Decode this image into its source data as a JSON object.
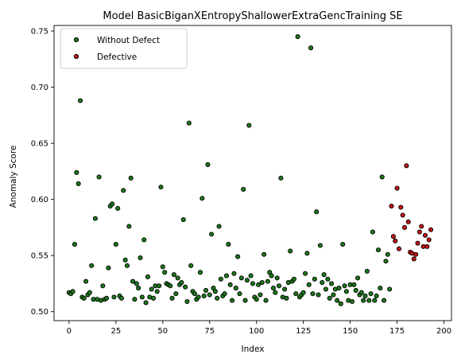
{
  "chart_data": {
    "type": "scatter",
    "title": "Model BasicBiganXEntropyShallowerExtraGencTraining SE",
    "xlabel": "Index",
    "ylabel": "Anomaly Score",
    "xlim": [
      -8,
      204
    ],
    "ylim": [
      0.492,
      0.755
    ],
    "xticks": [
      0,
      25,
      50,
      75,
      100,
      125,
      150,
      175,
      200
    ],
    "yticks": [
      0.5,
      0.55,
      0.6,
      0.65,
      0.7,
      0.75
    ],
    "xtick_labels": [
      "0",
      "25",
      "50",
      "75",
      "100",
      "125",
      "150",
      "175",
      "200"
    ],
    "ytick_labels": [
      "0.50",
      "0.55",
      "0.60",
      "0.65",
      "0.70",
      "0.75"
    ],
    "grid": false,
    "legend_position": "top-left",
    "series": [
      {
        "name": "Without Defect",
        "color": "#1a7a1a",
        "edge_color": "#000000",
        "points": [
          [
            0,
            0.517
          ],
          [
            1,
            0.516
          ],
          [
            2,
            0.518
          ],
          [
            3,
            0.56
          ],
          [
            4,
            0.624
          ],
          [
            5,
            0.614
          ],
          [
            6,
            0.688
          ],
          [
            7,
            0.513
          ],
          [
            8,
            0.512
          ],
          [
            9,
            0.527
          ],
          [
            10,
            0.515
          ],
          [
            11,
            0.517
          ],
          [
            12,
            0.541
          ],
          [
            13,
            0.511
          ],
          [
            14,
            0.583
          ],
          [
            15,
            0.511
          ],
          [
            16,
            0.62
          ],
          [
            17,
            0.51
          ],
          [
            18,
            0.523
          ],
          [
            19,
            0.511
          ],
          [
            20,
            0.512
          ],
          [
            21,
            0.539
          ],
          [
            22,
            0.594
          ],
          [
            23,
            0.596
          ],
          [
            24,
            0.513
          ],
          [
            25,
            0.56
          ],
          [
            26,
            0.592
          ],
          [
            27,
            0.514
          ],
          [
            28,
            0.512
          ],
          [
            29,
            0.608
          ],
          [
            30,
            0.546
          ],
          [
            31,
            0.541
          ],
          [
            32,
            0.576
          ],
          [
            33,
            0.619
          ],
          [
            34,
            0.527
          ],
          [
            35,
            0.511
          ],
          [
            36,
            0.525
          ],
          [
            37,
            0.521
          ],
          [
            38,
            0.548
          ],
          [
            39,
            0.513
          ],
          [
            40,
            0.564
          ],
          [
            41,
            0.508
          ],
          [
            42,
            0.531
          ],
          [
            43,
            0.513
          ],
          [
            44,
            0.52
          ],
          [
            45,
            0.512
          ],
          [
            46,
            0.523
          ],
          [
            47,
            0.518
          ],
          [
            48,
            0.523
          ],
          [
            49,
            0.611
          ],
          [
            50,
            0.54
          ],
          [
            51,
            0.535
          ],
          [
            52,
            0.525
          ],
          [
            53,
            0.524
          ],
          [
            54,
            0.523
          ],
          [
            55,
            0.512
          ],
          [
            56,
            0.533
          ],
          [
            57,
            0.516
          ],
          [
            58,
            0.53
          ],
          [
            59,
            0.524
          ],
          [
            60,
            0.526
          ],
          [
            61,
            0.582
          ],
          [
            62,
            0.522
          ],
          [
            63,
            0.509
          ],
          [
            64,
            0.668
          ],
          [
            65,
            0.541
          ],
          [
            66,
            0.518
          ],
          [
            67,
            0.516
          ],
          [
            68,
            0.511
          ],
          [
            69,
            0.513
          ],
          [
            70,
            0.535
          ],
          [
            71,
            0.601
          ],
          [
            72,
            0.514
          ],
          [
            73,
            0.519
          ],
          [
            74,
            0.631
          ],
          [
            75,
            0.515
          ],
          [
            76,
            0.569
          ],
          [
            77,
            0.521
          ],
          [
            78,
            0.518
          ],
          [
            79,
            0.512
          ],
          [
            80,
            0.576
          ],
          [
            81,
            0.529
          ],
          [
            82,
            0.514
          ],
          [
            83,
            0.516
          ],
          [
            84,
            0.532
          ],
          [
            85,
            0.56
          ],
          [
            86,
            0.524
          ],
          [
            87,
            0.51
          ],
          [
            88,
            0.534
          ],
          [
            89,
            0.521
          ],
          [
            90,
            0.549
          ],
          [
            91,
            0.516
          ],
          [
            92,
            0.53
          ],
          [
            93,
            0.609
          ],
          [
            94,
            0.51
          ],
          [
            95,
            0.528
          ],
          [
            96,
            0.666
          ],
          [
            97,
            0.532
          ],
          [
            98,
            0.525
          ],
          [
            99,
            0.513
          ],
          [
            100,
            0.511
          ],
          [
            101,
            0.524
          ],
          [
            102,
            0.515
          ],
          [
            103,
            0.526
          ],
          [
            104,
            0.551
          ],
          [
            105,
            0.51
          ],
          [
            106,
            0.527
          ],
          [
            107,
            0.535
          ],
          [
            108,
            0.532
          ],
          [
            109,
            0.521
          ],
          [
            110,
            0.517
          ],
          [
            111,
            0.53
          ],
          [
            112,
            0.523
          ],
          [
            113,
            0.619
          ],
          [
            114,
            0.513
          ],
          [
            115,
            0.52
          ],
          [
            116,
            0.512
          ],
          [
            117,
            0.526
          ],
          [
            118,
            0.554
          ],
          [
            119,
            0.527
          ],
          [
            120,
            0.529
          ],
          [
            121,
            0.516
          ],
          [
            122,
            0.745
          ],
          [
            123,
            0.513
          ],
          [
            124,
            0.515
          ],
          [
            125,
            0.517
          ],
          [
            126,
            0.534
          ],
          [
            127,
            0.552
          ],
          [
            128,
            0.524
          ],
          [
            129,
            0.735
          ],
          [
            130,
            0.516
          ],
          [
            131,
            0.529
          ],
          [
            132,
            0.589
          ],
          [
            133,
            0.515
          ],
          [
            134,
            0.559
          ],
          [
            135,
            0.526
          ],
          [
            136,
            0.533
          ],
          [
            137,
            0.52
          ],
          [
            138,
            0.529
          ],
          [
            139,
            0.512
          ],
          [
            140,
            0.525
          ],
          [
            141,
            0.515
          ],
          [
            142,
            0.52
          ],
          [
            143,
            0.51
          ],
          [
            144,
            0.521
          ],
          [
            145,
            0.507
          ],
          [
            146,
            0.56
          ],
          [
            147,
            0.523
          ],
          [
            148,
            0.518
          ],
          [
            149,
            0.51
          ],
          [
            150,
            0.524
          ],
          [
            151,
            0.509
          ],
          [
            152,
            0.524
          ],
          [
            153,
            0.519
          ],
          [
            154,
            0.53
          ],
          [
            155,
            0.515
          ],
          [
            156,
            0.517
          ],
          [
            157,
            0.51
          ],
          [
            158,
            0.514
          ],
          [
            159,
            0.536
          ],
          [
            160,
            0.51
          ],
          [
            161,
            0.516
          ],
          [
            162,
            0.571
          ],
          [
            163,
            0.51
          ],
          [
            164,
            0.514
          ],
          [
            165,
            0.555
          ],
          [
            166,
            0.521
          ],
          [
            167,
            0.62
          ],
          [
            168,
            0.51
          ],
          [
            169,
            0.545
          ],
          [
            170,
            0.551
          ],
          [
            171,
            0.52
          ]
        ]
      },
      {
        "name": "Defective",
        "color": "#c81414",
        "edge_color": "#000000",
        "points": [
          [
            172,
            0.594
          ],
          [
            173,
            0.567
          ],
          [
            174,
            0.563
          ],
          [
            175,
            0.61
          ],
          [
            176,
            0.556
          ],
          [
            177,
            0.593
          ],
          [
            178,
            0.586
          ],
          [
            179,
            0.575
          ],
          [
            180,
            0.63
          ],
          [
            181,
            0.58
          ],
          [
            182,
            0.553
          ],
          [
            183,
            0.552
          ],
          [
            184,
            0.547
          ],
          [
            185,
            0.551
          ],
          [
            186,
            0.561
          ],
          [
            187,
            0.571
          ],
          [
            188,
            0.576
          ],
          [
            189,
            0.558
          ],
          [
            190,
            0.568
          ],
          [
            191,
            0.558
          ],
          [
            192,
            0.564
          ],
          [
            193,
            0.573
          ]
        ]
      }
    ]
  }
}
